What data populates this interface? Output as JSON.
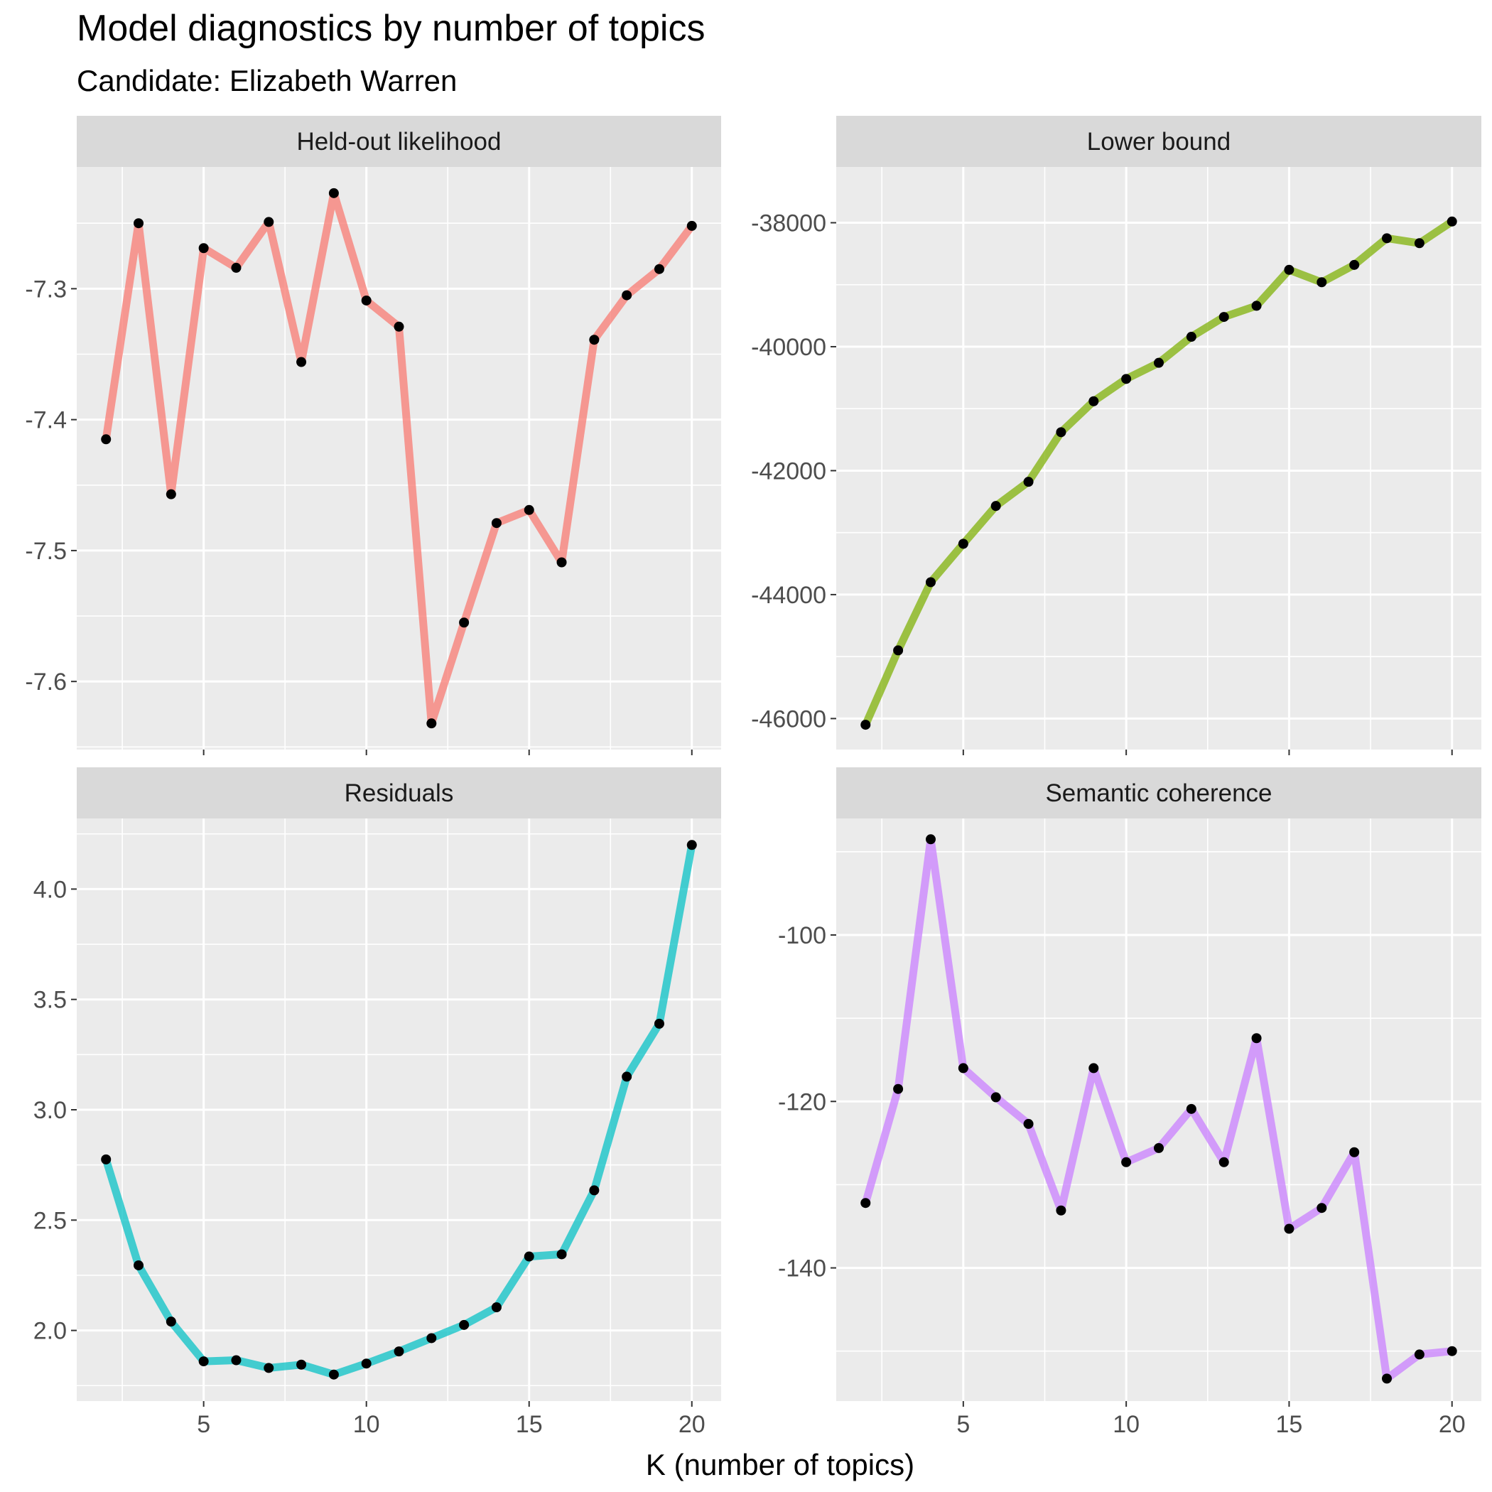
{
  "title": "Model diagnostics by number of topics",
  "subtitle": "Candidate: Elizabeth Warren",
  "xlabel": "K (number of topics)",
  "chart_data": [
    {
      "type": "line",
      "facet": "Held-out likelihood",
      "color": "#F8766D",
      "x": [
        2,
        3,
        4,
        5,
        6,
        7,
        8,
        9,
        10,
        11,
        12,
        13,
        14,
        15,
        16,
        17,
        18,
        19,
        20
      ],
      "y": [
        -7.415,
        -7.25,
        -7.457,
        -7.269,
        -7.284,
        -7.249,
        -7.356,
        -7.227,
        -7.309,
        -7.329,
        -7.632,
        -7.555,
        -7.479,
        -7.469,
        -7.509,
        -7.339,
        -7.305,
        -7.285,
        -7.252
      ],
      "yticks": [
        -7.6,
        -7.5,
        -7.4,
        -7.3
      ],
      "ytick_labels": [
        "-7.6",
        "-7.5",
        "-7.4",
        "-7.3"
      ],
      "ylim": [
        -7.652,
        -7.207
      ]
    },
    {
      "type": "line",
      "facet": "Lower bound",
      "color": "#7CAE00",
      "x": [
        2,
        3,
        4,
        5,
        6,
        7,
        8,
        9,
        10,
        11,
        12,
        13,
        14,
        15,
        16,
        17,
        18,
        19,
        20
      ],
      "y": [
        -46100,
        -44900,
        -43800,
        -43180,
        -42570,
        -42180,
        -41380,
        -40880,
        -40520,
        -40260,
        -39840,
        -39520,
        -39340,
        -38760,
        -38960,
        -38680,
        -38250,
        -38330,
        -37980
      ],
      "yticks": [
        -46000,
        -44000,
        -42000,
        -40000,
        -38000
      ],
      "ytick_labels": [
        "-46000",
        "-44000",
        "-42000",
        "-40000",
        "-38000"
      ],
      "ylim": [
        -46500,
        -37100
      ]
    },
    {
      "type": "line",
      "facet": "Residuals",
      "color": "#00BFC4",
      "x": [
        2,
        3,
        4,
        5,
        6,
        7,
        8,
        9,
        10,
        11,
        12,
        13,
        14,
        15,
        16,
        17,
        18,
        19,
        20
      ],
      "y": [
        2.775,
        2.295,
        2.04,
        1.86,
        1.865,
        1.83,
        1.845,
        1.8,
        1.85,
        1.905,
        1.965,
        2.025,
        2.105,
        2.335,
        2.345,
        2.635,
        3.15,
        3.39,
        4.2
      ],
      "yticks": [
        2.0,
        2.5,
        3.0,
        3.5,
        4.0
      ],
      "ytick_labels": [
        "2.0",
        "2.5",
        "3.0",
        "3.5",
        "4.0"
      ],
      "ylim": [
        1.68,
        4.32
      ]
    },
    {
      "type": "line",
      "facet": "Semantic coherence",
      "color": "#C77CFF",
      "x": [
        2,
        3,
        4,
        5,
        6,
        7,
        8,
        9,
        10,
        11,
        12,
        13,
        14,
        15,
        16,
        17,
        18,
        19,
        20
      ],
      "y": [
        -132.2,
        -118.5,
        -88.5,
        -116,
        -119.5,
        -122.7,
        -133.1,
        -116,
        -127.3,
        -125.6,
        -120.9,
        -127.3,
        -112.4,
        -135.3,
        -132.8,
        -126.1,
        -153.3,
        -150.4,
        -150
      ],
      "yticks": [
        -140,
        -120,
        -100
      ],
      "ytick_labels": [
        "-140",
        "-120",
        "-100"
      ],
      "ylim": [
        -156,
        -86
      ]
    }
  ],
  "xticks": [
    5,
    10,
    15,
    20
  ],
  "xtick_labels": [
    "5",
    "10",
    "15",
    "20"
  ],
  "xlim": [
    1.1,
    20.9
  ]
}
